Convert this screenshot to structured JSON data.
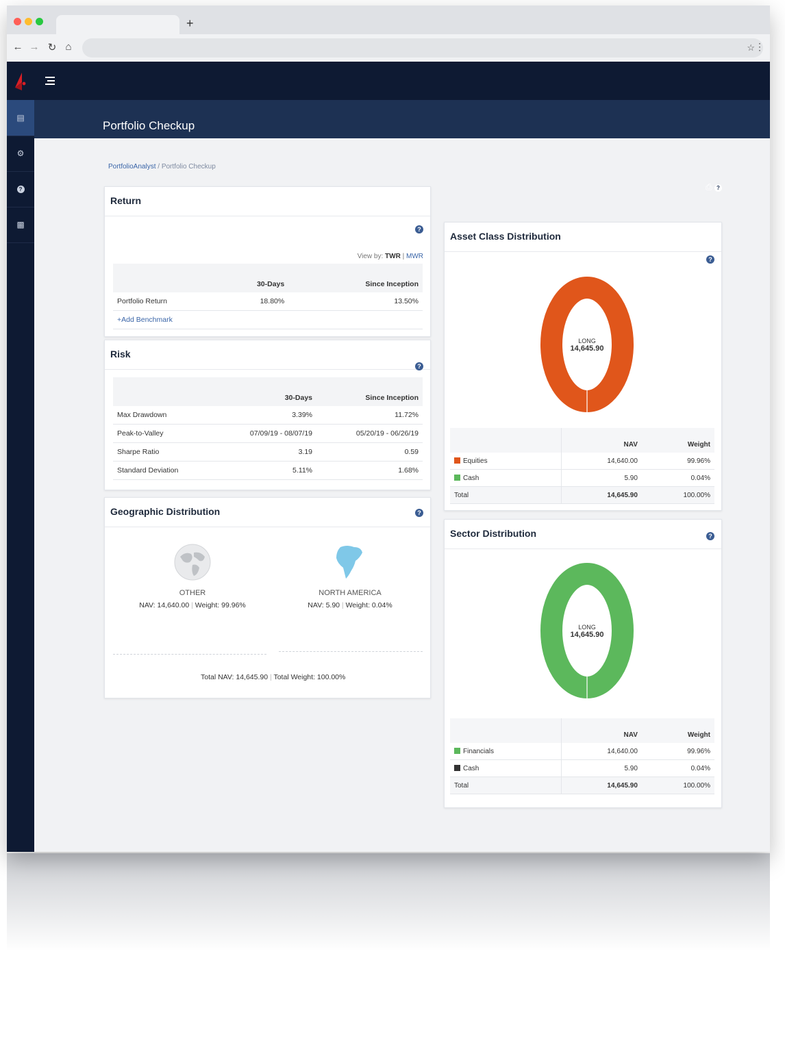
{
  "app": {
    "title": "Portfolio Checkup"
  },
  "breadcrumb": {
    "root": "PortfolioAnalyst",
    "separator": "/",
    "current": "Portfolio Checkup"
  },
  "return_card": {
    "title": "Return",
    "view_by_label": "View by:",
    "view_by_active": "TWR",
    "view_by_sep": "|",
    "view_by_other": "MWR",
    "columns": [
      "30-Days",
      "Since Inception"
    ],
    "rows": [
      {
        "label": "Portfolio Return",
        "d30": "18.80%",
        "since": "13.50%"
      }
    ],
    "add_benchmark": "Add Benchmark"
  },
  "risk_card": {
    "title": "Risk",
    "columns": [
      "30-Days",
      "Since Inception"
    ],
    "rows": [
      {
        "label": "Max Drawdown",
        "d30": "3.39%",
        "since": "11.72%"
      },
      {
        "label": "Peak-to-Valley",
        "d30": "07/09/19 - 08/07/19",
        "since": "05/20/19 - 06/26/19"
      },
      {
        "label": "Sharpe Ratio",
        "d30": "3.19",
        "since": "0.59"
      },
      {
        "label": "Standard Deviation",
        "d30": "5.11%",
        "since": "1.68%"
      }
    ]
  },
  "geo_card": {
    "title": "Geographic Distribution",
    "regions": [
      {
        "name": "OTHER",
        "nav_label": "NAV:",
        "nav": "14,640.00",
        "weight_label": "Weight:",
        "weight": "99.96%"
      },
      {
        "name": "NORTH AMERICA",
        "nav_label": "NAV:",
        "nav": "5.90",
        "weight_label": "Weight:",
        "weight": "0.04%"
      }
    ],
    "total_nav_label": "Total NAV:",
    "total_nav": "14,645.90",
    "total_weight_label": "Total Weight:",
    "total_weight": "100.00%"
  },
  "asset_card": {
    "title": "Asset Class Distribution",
    "center_label": "LONG",
    "center_value": "14,645.90",
    "columns": [
      "NAV",
      "Weight"
    ],
    "rows": [
      {
        "label": "Equities",
        "nav": "14,640.00",
        "weight": "99.96%",
        "color": "#e0561b"
      },
      {
        "label": "Cash",
        "nav": "5.90",
        "weight": "0.04%",
        "color": "#5cb85c"
      }
    ],
    "total_label": "Total",
    "total_nav": "14,645.90",
    "total_weight": "100.00%"
  },
  "sector_card": {
    "title": "Sector Distribution",
    "center_label": "LONG",
    "center_value": "14,645.90",
    "columns": [
      "NAV",
      "Weight"
    ],
    "rows": [
      {
        "label": "Financials",
        "nav": "14,640.00",
        "weight": "99.96%",
        "color": "#5cb85c"
      },
      {
        "label": "Cash",
        "nav": "5.90",
        "weight": "0.04%",
        "color": "#333333"
      }
    ],
    "total_label": "Total",
    "total_nav": "14,645.90",
    "total_weight": "100.00%"
  },
  "icons": {
    "sidebar": [
      "bar-chart-icon",
      "gears-icon",
      "help-icon",
      "report-icon"
    ],
    "header": [
      "globe-icon",
      "user-icon",
      "print-icon",
      "help-icon"
    ]
  },
  "colors": {
    "nav_dark": "#0e1a33",
    "header": "#1d3153",
    "accent": "#e0561b",
    "green": "#5cb85c",
    "link": "#3a65a8"
  }
}
